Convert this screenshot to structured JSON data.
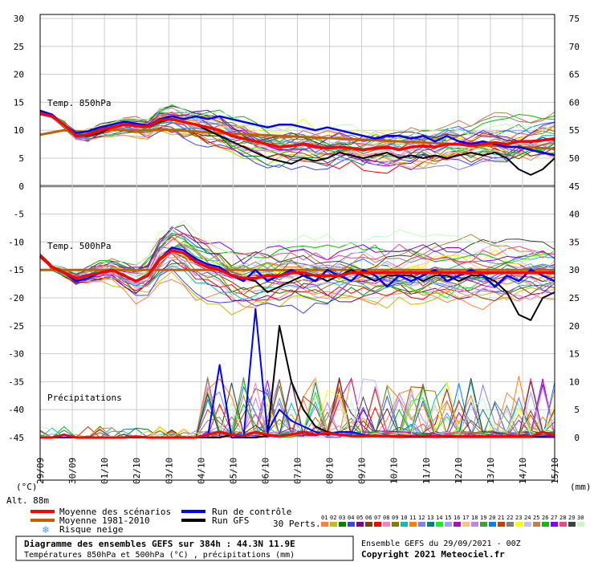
{
  "chart_data": {
    "type": "line",
    "title": "Diagramme des ensembles GEFS sur 384h : 44.3N 11.9E",
    "subtitle": "Températures 850hPa et 500hPa (°C) , précipitations (mm)",
    "run_info": "Ensemble GEFS du 29/09/2021 - 00Z",
    "copyright": "Copyright 2021 Meteociel.fr",
    "altitude": "Alt. 88m",
    "left_unit": "(°C)",
    "right_unit": "(mm)",
    "panel_labels": {
      "t850": "Temp. 850hPa",
      "t500": "Temp. 500hPa",
      "precip": "Précipitations"
    },
    "y_left_ticks": [
      "30",
      "25",
      "20",
      "15",
      "10",
      "5",
      "0",
      "-5",
      "-10",
      "-15",
      "-20",
      "-25",
      "-30",
      "-35",
      "-40",
      "-45"
    ],
    "y_right_ticks": [
      "75",
      "70",
      "65",
      "60",
      "55",
      "50",
      "45",
      "40",
      "35",
      "30",
      "25",
      "20",
      "15",
      "10",
      "5",
      "0"
    ],
    "x_ticks": [
      "29/09",
      "30/09",
      "01/10",
      "02/10",
      "03/10",
      "04/10",
      "05/10",
      "06/10",
      "07/10",
      "08/10",
      "09/10",
      "10/10",
      "11/10",
      "12/10",
      "13/10",
      "14/10",
      "15/10"
    ],
    "legend": {
      "mean": "Moyenne des scénarios",
      "clim": "Moyenne 1981-2010",
      "snow": "Risque neige",
      "control": "Run de contrôle",
      "gfs": "Run GFS",
      "perts": "30 Perts."
    },
    "perturbation_labels": [
      "01",
      "02",
      "03",
      "04",
      "05",
      "06",
      "07",
      "08",
      "09",
      "10",
      "11",
      "12",
      "13",
      "14",
      "15",
      "16",
      "17",
      "18",
      "19",
      "20",
      "21",
      "22",
      "23",
      "24",
      "25",
      "26",
      "27",
      "28",
      "29",
      "30"
    ],
    "perturbation_colors": [
      "#ff8040",
      "#c0c000",
      "#008000",
      "#4040ff",
      "#800080",
      "#804000",
      "#ff0000",
      "#ff80c0",
      "#808000",
      "#00c0c0",
      "#ff8000",
      "#8080ff",
      "#008080",
      "#00ff00",
      "#a0a0ff",
      "#c000c0",
      "#ffc080",
      "#c080ff",
      "#40a040",
      "#0080ff",
      "#c04000",
      "#808080",
      "#ffff00",
      "#c0c0ff",
      "#c08040",
      "#00c000",
      "#8000ff",
      "#ff4080",
      "#404040",
      "#c0ffc0"
    ],
    "colors": {
      "mean": "#ff0000",
      "clim": "#c06000",
      "control": "#0000ff",
      "gfs": "#000000"
    },
    "t850": {
      "mean": [
        13,
        12.5,
        11,
        9,
        9.2,
        10,
        10.5,
        11,
        10.8,
        10.6,
        11.8,
        12,
        11.5,
        11,
        10.5,
        10,
        9,
        8.5,
        8,
        7.5,
        7,
        7.2,
        7.5,
        7,
        6.8,
        7,
        6.8,
        6.5,
        6.8,
        7,
        6.5,
        7,
        7.2,
        7,
        7.5,
        7.5,
        7.2,
        7.5,
        7.8,
        7.5,
        8,
        8,
        8.2,
        8.5
      ],
      "clim": [
        9.2,
        9.6,
        10,
        9.8,
        9.7,
        10,
        10.1,
        10,
        9.9,
        10,
        10.1,
        10,
        9.9,
        9.8,
        9.6,
        9.5,
        9.4,
        9.3,
        9.2,
        9.1,
        9,
        8.9,
        8.8,
        8.7,
        8.6,
        8.5,
        8.4,
        8.3,
        8.2,
        8.1,
        8.0,
        7.9,
        7.8,
        7.7,
        7.6,
        7.5,
        7.4,
        7.3,
        7.2,
        7.1,
        7.0,
        6.9,
        6.8,
        6.7
      ],
      "control": [
        13.5,
        12.8,
        11,
        9.5,
        9.8,
        10.5,
        11,
        11.5,
        11.2,
        10.8,
        12,
        12.5,
        12,
        12.5,
        12,
        12.5,
        12,
        11.5,
        11,
        10.5,
        11,
        11,
        10.5,
        10,
        10.5,
        10,
        9.5,
        9,
        8.5,
        9,
        9,
        8.5,
        9,
        8,
        9,
        8,
        7.5,
        8,
        7.5,
        7,
        7,
        6.5,
        6,
        5.5
      ],
      "gfs": [
        13,
        12.5,
        11,
        9,
        9,
        9.5,
        10.5,
        11,
        11,
        10.5,
        11.5,
        12,
        11.5,
        11,
        10,
        9,
        8,
        7,
        6,
        5,
        4.5,
        4,
        5,
        4.5,
        5,
        6,
        5.5,
        5,
        5.5,
        6,
        5,
        5.5,
        5,
        5.5,
        5,
        5.5,
        6,
        5.5,
        6,
        5,
        3,
        2,
        3,
        5
      ]
    },
    "t500": {
      "mean": [
        -12.5,
        -14.5,
        -15.5,
        -16.5,
        -16,
        -15.5,
        -15,
        -16,
        -17,
        -16,
        -13,
        -11.5,
        -12,
        -13.5,
        -14.5,
        -15,
        -16,
        -16.5,
        -16.5,
        -16,
        -16,
        -15.5,
        -15.5,
        -16,
        -16,
        -16,
        -15.5,
        -15.5,
        -15.5,
        -15.5,
        -15.5,
        -15.5,
        -15.5,
        -15.5,
        -15.5,
        -15.5,
        -15.5,
        -15.5,
        -15.5,
        -15.5,
        -15.5,
        -15.5,
        -15.5,
        -15.5
      ],
      "clim": [
        -15,
        -15,
        -15,
        -15,
        -15,
        -15,
        -15,
        -15,
        -15,
        -15,
        -15,
        -15,
        -15,
        -15,
        -15,
        -15,
        -15,
        -15,
        -15,
        -15,
        -15,
        -15,
        -15,
        -15,
        -15,
        -15,
        -15,
        -15,
        -15,
        -15,
        -15,
        -15,
        -15,
        -15,
        -15,
        -15,
        -15,
        -15,
        -15,
        -15,
        -15,
        -15,
        -15,
        -15
      ],
      "control": [
        -12.5,
        -14.5,
        -15.5,
        -17,
        -16.5,
        -15.5,
        -15,
        -16,
        -17,
        -16,
        -13,
        -11,
        -11.5,
        -13,
        -14,
        -14.5,
        -16,
        -17,
        -15,
        -17,
        -16,
        -15,
        -16,
        -17,
        -15,
        -16,
        -17,
        -15,
        -16,
        -18,
        -16,
        -17,
        -16,
        -15,
        -17,
        -16,
        -15,
        -16,
        -18,
        -16,
        -17,
        -15,
        -16,
        -17
      ],
      "gfs": [
        -12.5,
        -14.5,
        -15.5,
        -16.5,
        -16,
        -15.5,
        -15,
        -16,
        -17,
        -16,
        -13,
        -11.5,
        -12,
        -13.5,
        -14.5,
        -15,
        -16,
        -16.5,
        -17,
        -19,
        -18,
        -17,
        -16,
        -16,
        -17,
        -16,
        -15,
        -16,
        -17,
        -16,
        -16,
        -16,
        -17,
        -16,
        -16,
        -17,
        -16,
        -16,
        -17,
        -19,
        -23,
        -24,
        -20,
        -19
      ]
    },
    "precip": {
      "mean": [
        0,
        0,
        0.5,
        0,
        0,
        0,
        0,
        0,
        0.2,
        0,
        0,
        0,
        0,
        0,
        0.5,
        1,
        0.5,
        0.3,
        1,
        0.5,
        0.3,
        0.5,
        1,
        0.5,
        0.8,
        0.5,
        0.3,
        0.3,
        0.3,
        0.3,
        0.2,
        0.3,
        0.3,
        0.2,
        0.3,
        0.2,
        0.2,
        0.2,
        0.2,
        0.2,
        0.2,
        0.2,
        1,
        0.3
      ],
      "control": [
        0,
        0,
        0,
        0,
        0,
        0,
        0,
        0,
        0,
        0,
        0,
        0,
        0,
        0,
        0,
        13,
        0,
        0,
        23,
        1,
        5,
        3,
        2,
        1,
        0.5,
        1,
        1,
        0.5,
        0.3,
        0.3,
        0.3,
        0.2,
        0.2,
        0.2,
        0.2,
        0.2,
        0.2,
        0.2,
        0.2,
        0.2,
        0.2,
        0.2,
        0.2,
        0.1
      ],
      "gfs": [
        0,
        0,
        0,
        0,
        0,
        0,
        0,
        0,
        0,
        0,
        0,
        0,
        0,
        0,
        0,
        0,
        0.5,
        0,
        0,
        0.3,
        20,
        10,
        5,
        2,
        1,
        0.5,
        0.3,
        0.2,
        0.2,
        0.2,
        0.1,
        0.1,
        0.1,
        0.1,
        0.1,
        0.1,
        0.1,
        0.1,
        0.1,
        0.1,
        0.1,
        0.1,
        0.1,
        0.1
      ]
    }
  }
}
